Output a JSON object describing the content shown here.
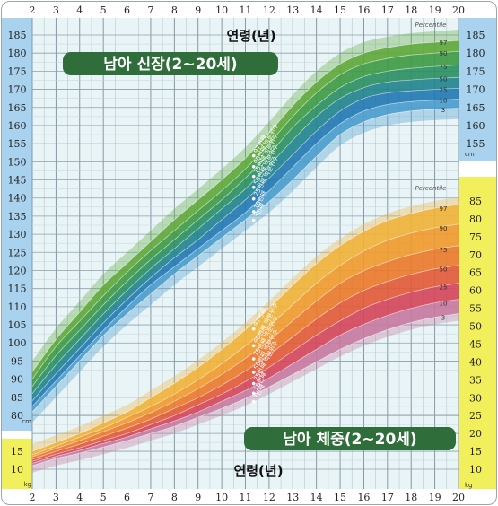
{
  "chart_data": [
    {
      "type": "area",
      "title": "남아 신장(2~20세)",
      "xlabel": "연령(년)",
      "percentile_header": "Percentile",
      "unit": "cm",
      "x": [
        2,
        3,
        4,
        5,
        6,
        7,
        8,
        9,
        10,
        11,
        12,
        13,
        14,
        15,
        16,
        17,
        18,
        19,
        20
      ],
      "xlim": [
        2,
        20
      ],
      "ylim": [
        78,
        188
      ],
      "yticks": [
        80,
        85,
        90,
        95,
        100,
        105,
        110,
        115,
        120,
        125,
        130,
        135,
        140,
        145,
        150,
        155,
        160,
        165,
        170,
        175,
        180,
        185
      ],
      "percentile_numbers": [
        "97",
        "90",
        "75",
        "50",
        "25",
        "10",
        "3"
      ],
      "series": [
        {
          "name": "97",
          "values": [
            92,
            101,
            108.5,
            116,
            122,
            128,
            134,
            139.5,
            145,
            151,
            158,
            165.5,
            172,
            177,
            180,
            181.5,
            182.5,
            183,
            183.5
          ]
        },
        {
          "name": "90",
          "values": [
            90,
            99,
            106,
            113,
            119.5,
            125.5,
            131,
            136.5,
            142,
            148,
            155,
            162.5,
            169,
            174,
            177,
            178.5,
            179.5,
            180,
            180.5
          ]
        },
        {
          "name": "75",
          "values": [
            88,
            96.5,
            103.5,
            110.5,
            117,
            123,
            128.5,
            134,
            139.5,
            145.5,
            152,
            159.5,
            165.5,
            170.5,
            173.5,
            175,
            175.8,
            176.3,
            176.7
          ]
        },
        {
          "name": "50",
          "values": [
            86,
            94,
            101,
            108,
            114.5,
            120.5,
            126,
            131.5,
            137,
            142.5,
            149,
            156,
            162.5,
            167.5,
            170.5,
            172,
            172.6,
            173,
            173.3
          ]
        },
        {
          "name": "25",
          "values": [
            84,
            91.5,
            98.5,
            105.5,
            112,
            118,
            123.5,
            128.5,
            134,
            139.5,
            145.5,
            152,
            158.5,
            164,
            167.5,
            169,
            169.6,
            170,
            170.3
          ]
        },
        {
          "name": "10",
          "values": [
            82.5,
            89.5,
            96.5,
            103.5,
            110,
            116,
            121,
            126,
            131,
            136,
            142,
            148.5,
            155,
            160.5,
            164,
            165.8,
            166.6,
            167,
            167.3
          ]
        },
        {
          "name": "3",
          "values": [
            81,
            88,
            95,
            102,
            108,
            113.5,
            119,
            124,
            129,
            134,
            139,
            145,
            151.5,
            157.5,
            161,
            163,
            164,
            164.5,
            164.8
          ]
        }
      ],
      "band_colors": [
        "#5fa83c",
        "#3f9a45",
        "#2c8f63",
        "#23848f",
        "#2479b4",
        "#4a9ccc"
      ],
      "labels": [
        "97번째",
        "90번째 백분위수",
        "75번째 백분위수",
        "50번째 백분위수",
        "25번째 백분위수",
        "10번째",
        "3번째"
      ]
    },
    {
      "type": "area",
      "title": "남아 체중(2~20세)",
      "xlabel": "연령(년)",
      "percentile_header": "Percentile",
      "unit": "kg",
      "x": [
        2,
        3,
        4,
        5,
        6,
        7,
        8,
        9,
        10,
        11,
        12,
        13,
        14,
        15,
        16,
        17,
        18,
        19,
        20
      ],
      "xlim": [
        2,
        20
      ],
      "yticks": [
        10,
        15,
        20,
        25,
        30,
        35,
        40,
        45,
        50,
        55,
        60,
        65,
        70,
        75,
        80,
        85
      ],
      "percentile_numbers": [
        "97",
        "90",
        "75",
        "50",
        "25",
        "10",
        "3"
      ],
      "series": [
        {
          "name": "97",
          "values": [
            15,
            17.5,
            20,
            23,
            26,
            30,
            34,
            38.5,
            43.5,
            49,
            55,
            61.5,
            67.5,
            72.5,
            76.5,
            79.5,
            81.5,
            83,
            84
          ]
        },
        {
          "name": "90",
          "values": [
            14,
            16.5,
            19,
            21.5,
            24.5,
            27.5,
            31,
            35,
            39.5,
            44.5,
            50,
            56,
            62,
            67,
            71,
            74,
            76,
            77.5,
            78.5
          ]
        },
        {
          "name": "75",
          "values": [
            13.5,
            15.8,
            18,
            20.5,
            23,
            25.8,
            29,
            32.5,
            36.5,
            41,
            46,
            51.5,
            57,
            62,
            65.5,
            68,
            70,
            71.5,
            72.5
          ]
        },
        {
          "name": "50",
          "values": [
            12.8,
            15,
            17,
            19.2,
            21.5,
            24,
            27,
            30,
            33.5,
            37.5,
            42,
            47,
            52,
            56.5,
            60,
            62.5,
            64.5,
            66,
            67
          ]
        },
        {
          "name": "25",
          "values": [
            12.2,
            14.2,
            16,
            18,
            20,
            22.5,
            25,
            28,
            31,
            34.5,
            38.5,
            43,
            47.5,
            51.5,
            55,
            57.5,
            59.5,
            61,
            62
          ]
        },
        {
          "name": "10",
          "values": [
            11.7,
            13.6,
            15.3,
            17.2,
            19,
            21.3,
            23.5,
            26,
            29,
            32,
            35.5,
            39.5,
            43.5,
            47.5,
            50.5,
            53,
            55,
            56.5,
            57.5
          ]
        },
        {
          "name": "3",
          "values": [
            11,
            13,
            14.5,
            16.2,
            18,
            20,
            22,
            24.5,
            27,
            29.8,
            33,
            36.5,
            40,
            43.5,
            46.5,
            49,
            51,
            52.5,
            53.5
          ]
        }
      ],
      "band_colors": [
        "#f0b23a",
        "#ef9a2e",
        "#ea7a2c",
        "#e25a3a",
        "#d4465c",
        "#c7799f"
      ],
      "labels": [
        "97번째",
        "90번째 백분위수",
        "75번째 백분위수",
        "50번째 백분위수",
        "25번째 백분위수",
        "10번째",
        "3번째"
      ]
    }
  ]
}
